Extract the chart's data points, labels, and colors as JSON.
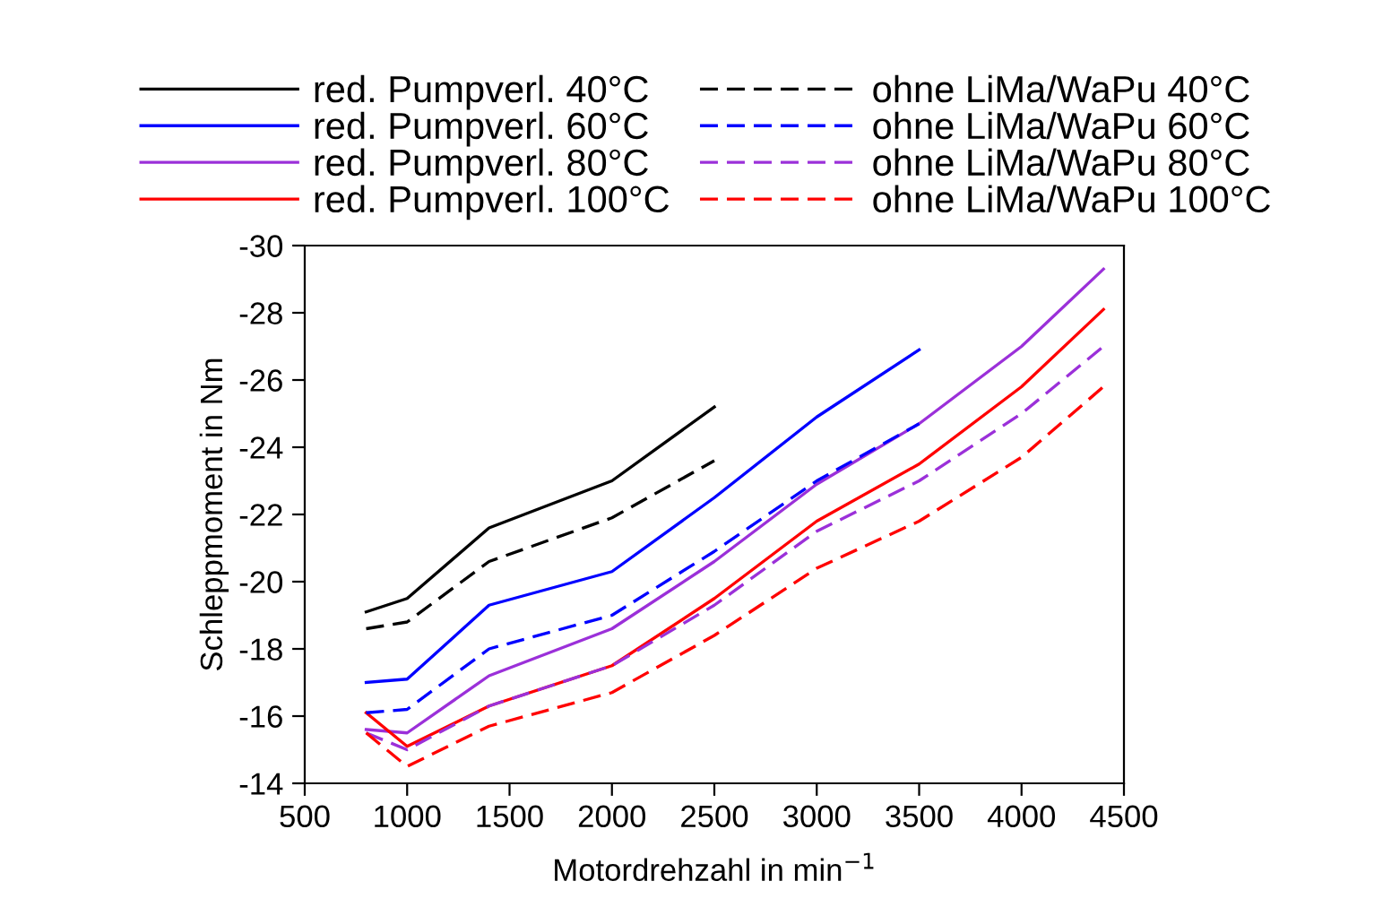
{
  "chart_data": {
    "type": "line",
    "xlabel": "Motordrehzahl in min$^{−1}$",
    "ylabel": "Schleppmoment in Nm",
    "xlim": [
      500,
      4500
    ],
    "xticks": [
      500,
      1000,
      1500,
      2000,
      2500,
      3000,
      3500,
      4000,
      4500
    ],
    "ylim": [
      -14,
      -30
    ],
    "yticks": [
      -14,
      -16,
      -18,
      -20,
      -22,
      -24,
      -26,
      -28,
      -30
    ],
    "grid": false,
    "legend": "top",
    "marker": "none",
    "series": [
      {
        "name": "red. Pumpverl. 40°C",
        "color": "#000000",
        "line_style": "solid",
        "x": [
          800,
          1000,
          1400,
          2000,
          2500
        ],
        "values": [
          -19.1,
          -19.5,
          -21.6,
          -23.0,
          -25.2
        ]
      },
      {
        "name": "red. Pumpverl. 60°C",
        "color": "#0000ff",
        "line_style": "solid",
        "x": [
          800,
          1000,
          1400,
          2000,
          2500,
          3000,
          3500
        ],
        "values": [
          -17.0,
          -17.1,
          -19.3,
          -20.3,
          -22.5,
          -24.9,
          -26.9
        ]
      },
      {
        "name": "red. Pumpverl. 80°C",
        "color": "#9b30d9",
        "line_style": "solid",
        "x": [
          800,
          1000,
          1400,
          2000,
          2500,
          3000,
          3500,
          4000,
          4400
        ],
        "values": [
          -15.6,
          -15.5,
          -17.2,
          -18.6,
          -20.6,
          -22.9,
          -24.7,
          -27.0,
          -29.3
        ]
      },
      {
        "name": "red. Pumpverl. 100°C",
        "color": "#ff0000",
        "line_style": "solid",
        "x": [
          800,
          1000,
          1400,
          2000,
          2500,
          3000,
          3500,
          4000,
          4400
        ],
        "values": [
          -16.1,
          -15.1,
          -16.3,
          -17.5,
          -19.5,
          -21.8,
          -23.5,
          -25.8,
          -28.1
        ]
      },
      {
        "name": "ohne LiMa/WaPu 40°C",
        "color": "#000000",
        "line_style": "dashed",
        "x": [
          800,
          1000,
          1400,
          2000,
          2500
        ],
        "values": [
          -18.6,
          -18.8,
          -20.6,
          -21.9,
          -23.6
        ]
      },
      {
        "name": "ohne LiMa/WaPu 60°C",
        "color": "#0000ff",
        "line_style": "dashed",
        "x": [
          800,
          1000,
          1400,
          2000,
          2500,
          3000,
          3500
        ],
        "values": [
          -16.1,
          -16.2,
          -18.0,
          -19.0,
          -20.9,
          -23.0,
          -24.7
        ]
      },
      {
        "name": "ohne LiMa/WaPu 80°C",
        "color": "#9b30d9",
        "line_style": "dashed",
        "x": [
          800,
          1000,
          1400,
          2000,
          2500,
          3000,
          3500,
          4000,
          4400
        ],
        "values": [
          -15.5,
          -15.0,
          -16.3,
          -17.5,
          -19.3,
          -21.5,
          -23.0,
          -25.0,
          -27.0
        ]
      },
      {
        "name": "ohne LiMa/WaPu 100°C",
        "color": "#ff0000",
        "line_style": "dashed",
        "x": [
          800,
          1000,
          1400,
          2000,
          2500,
          3000,
          3500,
          4000,
          4400
        ],
        "values": [
          -15.5,
          -14.5,
          -15.7,
          -16.7,
          -18.4,
          -20.4,
          -21.8,
          -23.7,
          -25.8
        ]
      }
    ]
  }
}
